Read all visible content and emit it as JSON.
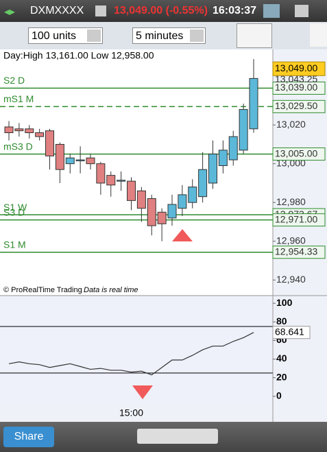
{
  "header": {
    "symbol": "DXMXXXX",
    "price": "13,049.00 (-0.55%)",
    "time": "16:03:37"
  },
  "toolbar": {
    "quantity": "100 units",
    "interval": "5 minutes"
  },
  "footer": {
    "share": "Share"
  },
  "chart_data": [
    {
      "type": "candlestick",
      "subtitle": "Day:High 13,161.00 Low 12,958.00",
      "notes": [
        "© ProRealTime Trading",
        "Data is real time"
      ],
      "categories": [
        null,
        null,
        null,
        null,
        null,
        null,
        null,
        null,
        null,
        null,
        null,
        null,
        "15:00",
        null,
        null,
        null,
        null,
        null,
        null,
        null,
        null,
        null,
        null,
        null,
        null
      ],
      "open": [
        13019,
        13018,
        13018,
        13016,
        13017,
        13010,
        13000,
        13002,
        13003,
        13000,
        12994,
        12991.5,
        12991,
        12986,
        12982,
        12975,
        12972,
        12977,
        12980,
        12983,
        12990,
        12999,
        13002,
        13007,
        13018
      ],
      "high": [
        13022,
        13021,
        13020,
        13018,
        13018,
        13011,
        13005,
        13009,
        13005,
        13001,
        12996,
        12996,
        12993,
        12988,
        12984,
        12977,
        12984,
        12989,
        12992,
        13006,
        13012,
        13012,
        13017,
        13031,
        13054
      ],
      "low": [
        13012,
        13014,
        13013,
        13012,
        12997,
        12990,
        12995,
        12995,
        12997,
        12984,
        12983,
        12986,
        12976,
        12970,
        12963,
        12960,
        12968,
        12973,
        12977,
        12980,
        12987,
        12995,
        12999,
        13005,
        13016
      ],
      "close": [
        13016,
        13017,
        13016,
        13014,
        13004,
        12997,
        13003,
        13002,
        13000,
        12990,
        12989,
        12991.5,
        12981,
        12977,
        12968,
        12969,
        12979,
        12984,
        12988,
        12997,
        13005,
        13007,
        13014,
        13028,
        13044
      ],
      "up_color": "#5bb8d8",
      "down_color": "#e08080",
      "ylim": [
        12933,
        13059
      ],
      "yticks": [
        {
          "value": 12940,
          "label": "12,940"
        },
        {
          "value": 12960,
          "label": "12,960"
        },
        {
          "value": 12980,
          "label": "12,980"
        },
        {
          "value": 13000,
          "label": "13,000"
        },
        {
          "value": 13020,
          "label": "13,020"
        }
      ],
      "levels": [
        {
          "name": "S2 D",
          "value": 13039,
          "label": "13,039.00",
          "dashed": false
        },
        {
          "name": "mS1 M",
          "value": 13029.5,
          "label": "13,029.50",
          "dashed": true
        },
        {
          "name": "mS3 D",
          "value": 13005,
          "label": "13,005.00",
          "dashed": false
        },
        {
          "name": "S1 W",
          "value": 12973.67,
          "label": "12,973.67",
          "dashed": false
        },
        {
          "name": "S3 D",
          "value": 12971,
          "label": "12,971.00",
          "dashed": false
        },
        {
          "name": "S1 M",
          "value": 12954.33,
          "label": "12,954.33",
          "dashed": false
        }
      ],
      "level_color": "#2e8b2e",
      "price_labels": [
        {
          "value": 13043.25,
          "label": "13,043.25"
        }
      ],
      "last": {
        "value": 13049,
        "label": "13,049.00"
      }
    },
    {
      "type": "line",
      "values": [
        35,
        37,
        35,
        34,
        31,
        33,
        35,
        32,
        29,
        30,
        28,
        28,
        26,
        27,
        23,
        31,
        39,
        39,
        44,
        50,
        54,
        54,
        59,
        63,
        68.641
      ],
      "color": "#333333",
      "ylim": [
        -9,
        106
      ],
      "yticks": [
        0,
        20,
        40,
        60,
        80,
        100
      ],
      "levels": [
        75,
        25
      ],
      "last": {
        "value": 68.641,
        "label": "68.641"
      }
    }
  ]
}
